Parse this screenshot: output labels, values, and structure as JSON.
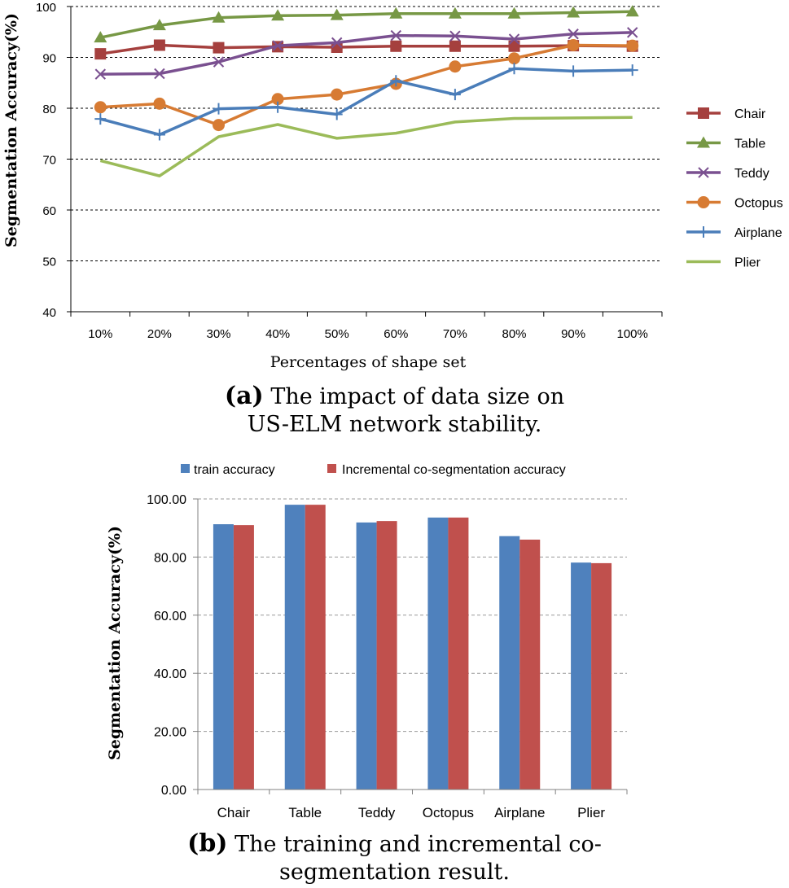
{
  "chart_data": [
    {
      "type": "line",
      "id": "a",
      "caption_label": "(a)",
      "caption_text": "The impact of data size on",
      "caption_text_2": "US-ELM network stability.",
      "title": "",
      "xlabel": "Percentages of shape set",
      "ylabel": "Segmentation Accuracy(%)",
      "ylim": [
        40,
        100
      ],
      "yticks": [
        "40",
        "50",
        "60",
        "70",
        "80",
        "90",
        "100"
      ],
      "categories": [
        "10%",
        "20%",
        "30%",
        "40%",
        "50%",
        "60%",
        "70%",
        "80%",
        "90%",
        "100%"
      ],
      "grid": true,
      "legend_position": "right",
      "series": [
        {
          "name": "Chair",
          "color": "#A5403E",
          "marker": "square",
          "values": [
            90.7,
            92.4,
            91.9,
            92.1,
            92.0,
            92.2,
            92.2,
            92.2,
            92.3,
            92.2
          ]
        },
        {
          "name": "Table",
          "color": "#779845",
          "marker": "triangle",
          "values": [
            93.9,
            96.3,
            97.8,
            98.2,
            98.3,
            98.6,
            98.6,
            98.6,
            98.8,
            99.0
          ]
        },
        {
          "name": "Teddy",
          "color": "#7A5090",
          "marker": "x",
          "values": [
            86.7,
            86.8,
            89.1,
            92.3,
            92.9,
            94.3,
            94.2,
            93.6,
            94.6,
            94.9
          ]
        },
        {
          "name": "Octopus",
          "color": "#D77B33",
          "marker": "circle",
          "values": [
            80.2,
            80.9,
            76.7,
            81.8,
            82.7,
            84.8,
            88.2,
            89.8,
            92.4,
            92.3
          ]
        },
        {
          "name": "Airplane",
          "color": "#4A7DB9",
          "marker": "plus",
          "values": [
            77.9,
            74.8,
            79.9,
            80.2,
            78.8,
            85.4,
            82.7,
            87.8,
            87.3,
            87.5
          ]
        },
        {
          "name": "Plier",
          "color": "#9BBB59",
          "marker": "none",
          "values": [
            69.7,
            66.7,
            74.4,
            76.8,
            74.1,
            75.1,
            77.3,
            78.0,
            78.1,
            78.2
          ]
        }
      ]
    },
    {
      "type": "bar",
      "id": "b",
      "caption_label": "(b)",
      "caption_text": "The training and incremental co-",
      "caption_text_2": "segmentation result.",
      "title": "",
      "xlabel": "",
      "ylabel": "Segmentation Accuracy(%)",
      "ylim": [
        0,
        100
      ],
      "yticks": [
        "0.00",
        "20.00",
        "40.00",
        "60.00",
        "80.00",
        "100.00"
      ],
      "categories": [
        "Chair",
        "Table",
        "Teddy",
        "Octopus",
        "Airplane",
        "Plier"
      ],
      "grid": true,
      "legend_position": "top",
      "series": [
        {
          "name": "train accuracy",
          "color": "#4F81BD",
          "values": [
            91.3,
            98.0,
            91.9,
            93.6,
            87.2,
            78.1
          ]
        },
        {
          "name": "Incremental co-segmentation accuracy",
          "color": "#C0504D",
          "values": [
            91.0,
            98.0,
            92.4,
            93.6,
            86.0,
            77.9
          ]
        }
      ]
    }
  ]
}
